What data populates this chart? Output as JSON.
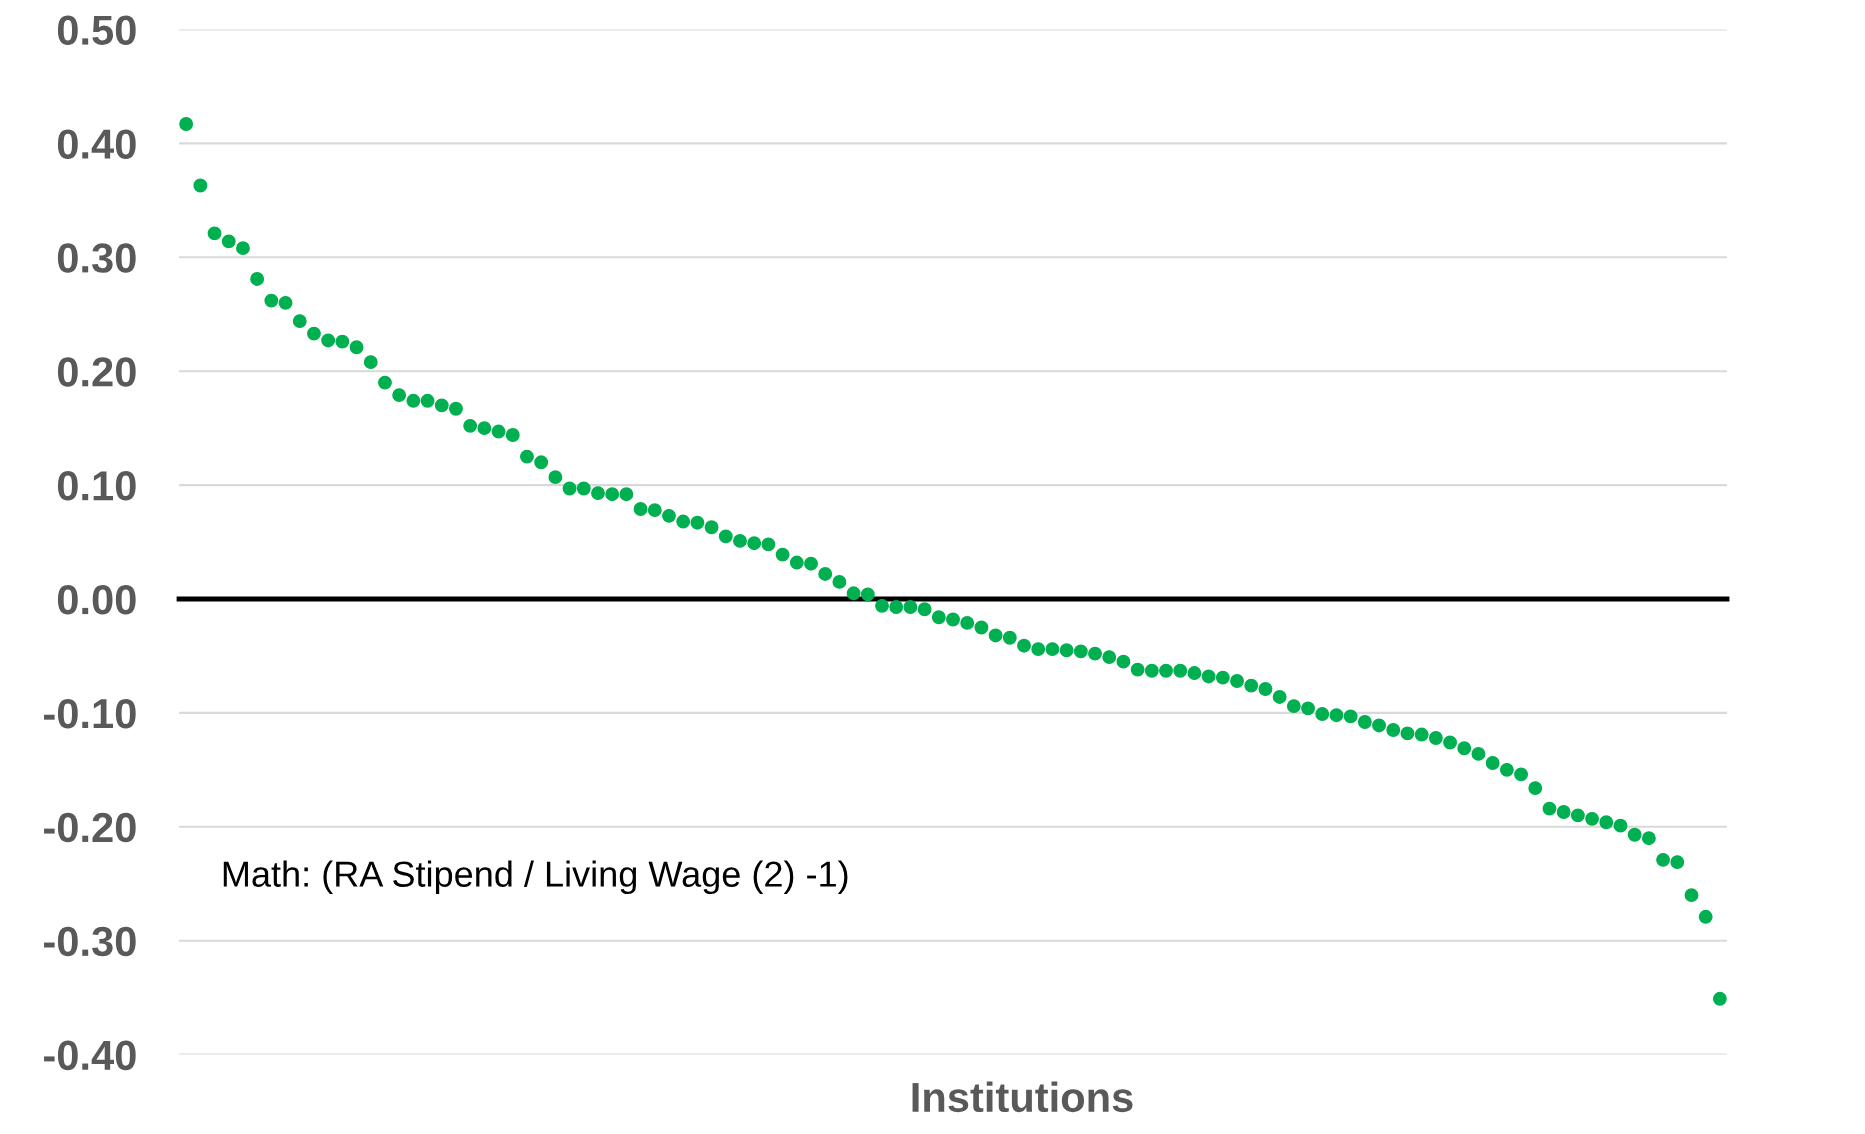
{
  "chart_data": {
    "type": "scatter",
    "xlabel": "Institutions",
    "annotations": [
      "Math: (RA Stipend / Living Wage (2) -1)"
    ],
    "categories": [
      null,
      null,
      null,
      null,
      null,
      null,
      null,
      null,
      null,
      null,
      null,
      null,
      null,
      null,
      null,
      null,
      null,
      null,
      null,
      null,
      null,
      null,
      null,
      null,
      null,
      null,
      null,
      null,
      null,
      null,
      null,
      null,
      null,
      null,
      null,
      null,
      null,
      null,
      null,
      null,
      null,
      null,
      null,
      null,
      null,
      null,
      null,
      null,
      null,
      null,
      null,
      null,
      null,
      null,
      null,
      null,
      null,
      null,
      null,
      null,
      null,
      null,
      null,
      null,
      null,
      null,
      null,
      null,
      null,
      null,
      null,
      null,
      null,
      null,
      null,
      null,
      null,
      null,
      null,
      null,
      null,
      null,
      null,
      null,
      null,
      null,
      null,
      null,
      null,
      null,
      null,
      null,
      null,
      null,
      null,
      null,
      null,
      null,
      null,
      null,
      null,
      null,
      null,
      null,
      null,
      null,
      null,
      null,
      null
    ],
    "series": [
      {
        "color": "#00b050",
        "values": [
          0.417,
          0.363,
          0.321,
          0.314,
          0.308,
          0.281,
          0.262,
          0.26,
          0.244,
          0.233,
          0.227,
          0.226,
          0.221,
          0.208,
          0.19,
          0.179,
          0.174,
          0.174,
          0.17,
          0.167,
          0.152,
          0.15,
          0.147,
          0.144,
          0.125,
          0.12,
          0.107,
          0.097,
          0.097,
          0.093,
          0.092,
          0.092,
          0.079,
          0.078,
          0.073,
          0.068,
          0.067,
          0.063,
          0.055,
          0.051,
          0.049,
          0.048,
          0.039,
          0.032,
          0.031,
          0.022,
          0.015,
          0.005,
          0.004,
          -0.006,
          -0.007,
          -0.007,
          -0.009,
          -0.016,
          -0.018,
          -0.021,
          -0.025,
          -0.032,
          -0.034,
          -0.041,
          -0.044,
          -0.044,
          -0.045,
          -0.046,
          -0.048,
          -0.051,
          -0.055,
          -0.062,
          -0.063,
          -0.063,
          -0.063,
          -0.065,
          -0.068,
          -0.069,
          -0.072,
          -0.076,
          -0.079,
          -0.086,
          -0.094,
          -0.096,
          -0.101,
          -0.102,
          -0.103,
          -0.108,
          -0.111,
          -0.115,
          -0.118,
          -0.119,
          -0.122,
          -0.126,
          -0.131,
          -0.136,
          -0.144,
          -0.15,
          -0.154,
          -0.166,
          -0.184,
          -0.187,
          -0.19,
          -0.193,
          -0.196,
          -0.199,
          -0.207,
          -0.21,
          -0.229,
          -0.231,
          -0.26,
          -0.279,
          -0.351
        ]
      }
    ],
    "ylim": [
      -0.4,
      0.5
    ],
    "yticks": [
      {
        "value": -0.4,
        "label": "-0.40"
      },
      {
        "value": -0.3,
        "label": "-0.30"
      },
      {
        "value": -0.2,
        "label": "-0.20"
      },
      {
        "value": -0.1,
        "label": "-0.10"
      },
      {
        "value": 0,
        "label": "0.00"
      },
      {
        "value": 0.1,
        "label": "0.10"
      },
      {
        "value": 0.2,
        "label": "0.20"
      },
      {
        "value": 0.3,
        "label": "0.30"
      },
      {
        "value": 0.4,
        "label": "0.40"
      },
      {
        "value": 0.5,
        "label": "0.50"
      }
    ],
    "grid": "y",
    "marker": "circle",
    "tick_labels": "y"
  }
}
